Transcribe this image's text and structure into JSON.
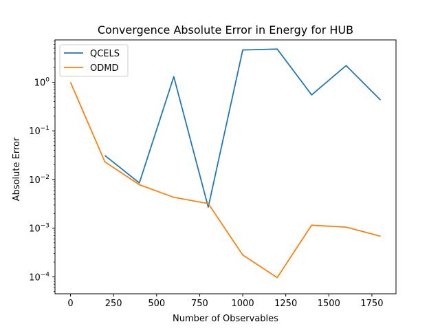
{
  "chart_data": {
    "type": "line",
    "title": "Convergence Absolute Error in Energy for HUB",
    "xlabel": "Number of Observables",
    "ylabel": "Absolute Error",
    "yscale": "log",
    "xlim": [
      -90,
      1890
    ],
    "ylim_log10": [
      -4.35,
      0.87
    ],
    "xticks": [
      0,
      250,
      500,
      750,
      1000,
      1250,
      1500,
      1750
    ],
    "xtick_labels": [
      "0",
      "250",
      "500",
      "750",
      "1000",
      "1250",
      "1500",
      "1750"
    ],
    "yticks_exp": [
      -4,
      -3,
      -2,
      -1,
      0
    ],
    "ytick_labels": [
      {
        "base": "10",
        "exp": "−4"
      },
      {
        "base": "10",
        "exp": "−3"
      },
      {
        "base": "10",
        "exp": "−2"
      },
      {
        "base": "10",
        "exp": "−1"
      },
      {
        "base": "10",
        "exp": "0"
      }
    ],
    "grid": false,
    "legend_position": "top-left",
    "series": [
      {
        "name": "QCELS",
        "color": "#1f77b4",
        "x": [
          200,
          400,
          600,
          800,
          1000,
          1200,
          1400,
          1600,
          1800
        ],
        "y": [
          0.031,
          0.0085,
          1.3,
          0.0027,
          4.6,
          4.8,
          0.55,
          2.2,
          0.43
        ]
      },
      {
        "name": "ODMD",
        "color": "#ff7f0e",
        "x": [
          0,
          200,
          400,
          600,
          800,
          1000,
          1200,
          1400,
          1600,
          1800
        ],
        "y": [
          1.0,
          0.023,
          0.0078,
          0.0043,
          0.0032,
          0.00028,
          9.6e-05,
          0.00115,
          0.00105,
          0.00068
        ]
      }
    ]
  }
}
